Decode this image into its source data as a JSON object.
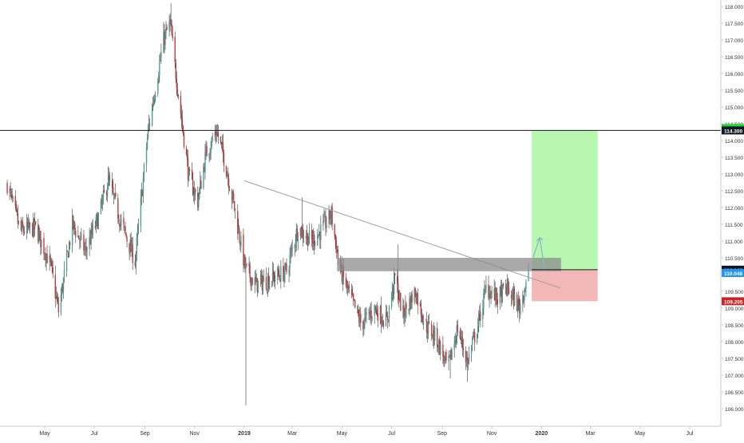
{
  "chart_data": {
    "type": "candlestick",
    "x_axis": {
      "ticks": [
        {
          "label": "May",
          "date": "2018-05-01"
        },
        {
          "label": "Jul",
          "date": "2018-07-01"
        },
        {
          "label": "Sep",
          "date": "2018-09-01"
        },
        {
          "label": "Nov",
          "date": "2018-11-01"
        },
        {
          "label": "2019",
          "date": "2019-01-01",
          "bold": true
        },
        {
          "label": "Mar",
          "date": "2019-03-01"
        },
        {
          "label": "May",
          "date": "2019-05-01"
        },
        {
          "label": "Jul",
          "date": "2019-07-01"
        },
        {
          "label": "Sep",
          "date": "2019-09-01"
        },
        {
          "label": "Nov",
          "date": "2019-11-01"
        },
        {
          "label": "2020",
          "date": "2020-01-01",
          "bold": true
        },
        {
          "label": "Mar",
          "date": "2020-03-01"
        },
        {
          "label": "May",
          "date": "2020-05-01"
        },
        {
          "label": "Jul",
          "date": "2020-07-01"
        }
      ]
    },
    "y_axis": {
      "range": [
        105.8,
        118.2
      ],
      "ticks": [
        "118.000",
        "117.500",
        "117.000",
        "116.500",
        "116.000",
        "115.500",
        "115.000",
        "114.500",
        "114.000",
        "113.500",
        "113.000",
        "112.500",
        "112.000",
        "111.500",
        "111.000",
        "110.500",
        "110.000",
        "109.500",
        "109.000",
        "108.500",
        "108.000",
        "107.500",
        "107.000",
        "106.500",
        "106.000"
      ]
    },
    "price_labels": [
      {
        "text": "114.300",
        "value": 114.3,
        "bg": "#131722",
        "color": "#ffffff"
      },
      {
        "text": "110.146",
        "value": 110.146,
        "bg": "#131722",
        "color": "#ffffff"
      },
      {
        "text": "110.048",
        "value": 110.048,
        "bg": "#2196f3",
        "color": "#ffffff"
      },
      {
        "text": "109.205",
        "value": 109.205,
        "bg": "#c62828",
        "color": "#ffffff"
      }
    ],
    "series": [
      {
        "name": "",
        "kind": "ohlc_path",
        "anchors": [
          {
            "date": "2018-03-16",
            "price": 112.7
          },
          {
            "date": "2018-04-01",
            "price": 111.3
          },
          {
            "date": "2018-04-20",
            "price": 111.4
          },
          {
            "date": "2018-05-08",
            "price": 110.3
          },
          {
            "date": "2018-05-18",
            "price": 108.9
          },
          {
            "date": "2018-06-04",
            "price": 111.5
          },
          {
            "date": "2018-06-20",
            "price": 110.7
          },
          {
            "date": "2018-07-06",
            "price": 111.7
          },
          {
            "date": "2018-07-18",
            "price": 112.8
          },
          {
            "date": "2018-08-02",
            "price": 111.6
          },
          {
            "date": "2018-08-20",
            "price": 110.4
          },
          {
            "date": "2018-09-05",
            "price": 114.3
          },
          {
            "date": "2018-09-24",
            "price": 117.0
          },
          {
            "date": "2018-10-02",
            "price": 117.5
          },
          {
            "date": "2018-10-08",
            "price": 116.2
          },
          {
            "date": "2018-10-25",
            "price": 112.9
          },
          {
            "date": "2018-11-05",
            "price": 112.2
          },
          {
            "date": "2018-11-15",
            "price": 113.6
          },
          {
            "date": "2018-11-28",
            "price": 114.3
          },
          {
            "date": "2018-12-08",
            "price": 113.4
          },
          {
            "date": "2018-12-20",
            "price": 112.0
          },
          {
            "date": "2019-01-02",
            "price": 110.2
          },
          {
            "date": "2019-01-15",
            "price": 109.7
          },
          {
            "date": "2019-02-05",
            "price": 109.9
          },
          {
            "date": "2019-02-22",
            "price": 110.1
          },
          {
            "date": "2019-03-08",
            "price": 111.4
          },
          {
            "date": "2019-03-25",
            "price": 111.0
          },
          {
            "date": "2019-04-05",
            "price": 111.3
          },
          {
            "date": "2019-04-18",
            "price": 111.8
          },
          {
            "date": "2019-04-28",
            "price": 110.2
          },
          {
            "date": "2019-05-12",
            "price": 109.3
          },
          {
            "date": "2019-05-25",
            "price": 108.5
          },
          {
            "date": "2019-06-10",
            "price": 109.0
          },
          {
            "date": "2019-06-25",
            "price": 108.6
          },
          {
            "date": "2019-07-05",
            "price": 109.9
          },
          {
            "date": "2019-07-15",
            "price": 108.8
          },
          {
            "date": "2019-07-30",
            "price": 109.5
          },
          {
            "date": "2019-08-12",
            "price": 108.5
          },
          {
            "date": "2019-08-25",
            "price": 108.1
          },
          {
            "date": "2019-09-08",
            "price": 107.2
          },
          {
            "date": "2019-09-20",
            "price": 108.4
          },
          {
            "date": "2019-10-02",
            "price": 107.4
          },
          {
            "date": "2019-10-15",
            "price": 108.5
          },
          {
            "date": "2019-10-25",
            "price": 109.6
          },
          {
            "date": "2019-11-08",
            "price": 109.3
          },
          {
            "date": "2019-11-20",
            "price": 109.6
          },
          {
            "date": "2019-12-05",
            "price": 109.0
          },
          {
            "date": "2019-12-16",
            "price": 110.1
          }
        ],
        "spikes": [
          {
            "date": "2019-01-03",
            "low": 106.1
          },
          {
            "date": "2019-03-13",
            "high": 112.3
          },
          {
            "date": "2019-07-09",
            "high": 110.9
          },
          {
            "date": "2019-09-11",
            "low": 106.9
          },
          {
            "date": "2019-10-02",
            "low": 106.8
          },
          {
            "date": "2018-10-03",
            "high": 118.1
          }
        ],
        "up_color": "#4d9f96",
        "down_color": "#c23b3b"
      }
    ],
    "drawings": [
      {
        "kind": "hline",
        "price": 114.3,
        "color": "#131722"
      },
      {
        "kind": "trendline",
        "from": {
          "date": "2019-01-01",
          "price": 112.8
        },
        "to": {
          "date": "2020-01-24",
          "price": 109.6
        },
        "color": "#9e9e9e"
      },
      {
        "kind": "zone",
        "from_date": "2019-04-25",
        "to_date": "2020-01-25",
        "top": 110.5,
        "bottom": 110.1,
        "color": "#8c8c8c",
        "opacity": 0.75
      },
      {
        "kind": "position_profit",
        "from_date": "2019-12-20",
        "to_date": "2020-03-10",
        "top": 114.3,
        "bottom": 110.146,
        "color": "#b7f7b0"
      },
      {
        "kind": "position_loss",
        "from_date": "2019-12-20",
        "to_date": "2020-03-10",
        "top": 110.146,
        "bottom": 109.205,
        "color": "#f2b8b8"
      },
      {
        "kind": "path_arrow",
        "points": [
          {
            "date": "2019-12-20",
            "price": 110.4
          },
          {
            "date": "2019-12-30",
            "price": 111.1
          },
          {
            "date": "2020-01-05",
            "price": 110.1
          }
        ],
        "color": "#8fb0c9"
      }
    ],
    "grid": false,
    "legend": "none"
  }
}
